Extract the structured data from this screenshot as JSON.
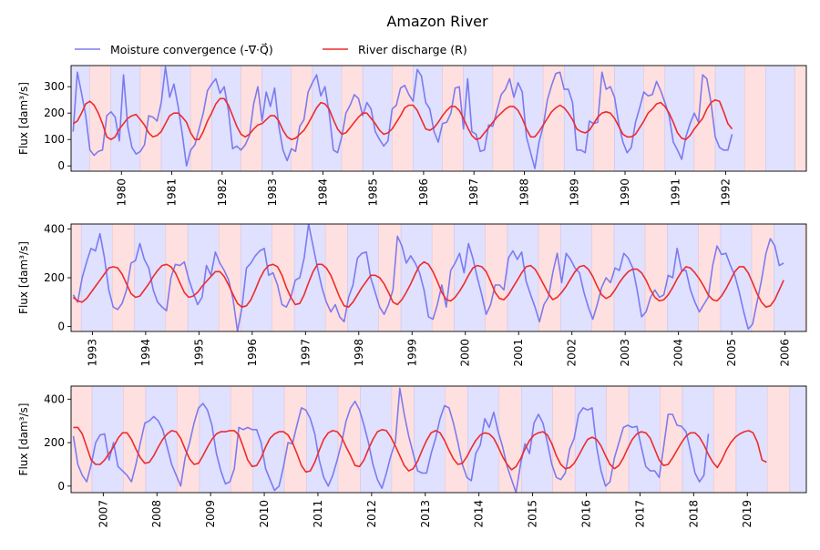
{
  "figure": {
    "title": "Amazon River",
    "legend": [
      {
        "label": "Moisture convergence (-∇·Q⃗)",
        "color": "#7b7bef"
      },
      {
        "label": "River discharge (R)",
        "color": "#ee2b2b"
      }
    ],
    "ylabel": "Flux [dam³/s]"
  },
  "chart_data": [
    {
      "type": "line",
      "title": "",
      "xlabel": "",
      "ylabel": "Flux [dam³/s]",
      "xlim": [
        1979.0,
        1993.6
      ],
      "ylim": [
        -20,
        380
      ],
      "yticks": [
        0,
        100,
        200,
        300
      ],
      "xticks": [
        "1980",
        "1981",
        "1982",
        "1983",
        "1984",
        "1985",
        "1986",
        "1987",
        "1988",
        "1989",
        "1990",
        "1991",
        "1992"
      ],
      "grid": false,
      "legend_position": "above plots, left",
      "shading": {
        "blue_start_month": 9.5,
        "blue_months": 7,
        "red_months": 5,
        "blue_color": "#e0e0ff",
        "red_color": "#ffe0e0"
      },
      "series": [
        {
          "name": "Moisture convergence",
          "color": "#7b7bef",
          "values": [
            130,
            355,
            275,
            190,
            60,
            40,
            55,
            60,
            190,
            205,
            185,
            95,
            345,
            150,
            70,
            45,
            55,
            80,
            190,
            185,
            170,
            240,
            375,
            260,
            310,
            225,
            120,
            0,
            60,
            80,
            140,
            200,
            285,
            310,
            330,
            275,
            300,
            210,
            65,
            75,
            60,
            80,
            115,
            235,
            300,
            170,
            280,
            225,
            295,
            150,
            60,
            20,
            65,
            55,
            150,
            175,
            280,
            315,
            345,
            265,
            300,
            200,
            60,
            50,
            110,
            200,
            230,
            270,
            255,
            190,
            240,
            215,
            130,
            100,
            75,
            95,
            215,
            230,
            295,
            305,
            270,
            245,
            365,
            340,
            240,
            215,
            130,
            90,
            160,
            165,
            200,
            295,
            300,
            140,
            330,
            130,
            120,
            55,
            60,
            155,
            150,
            210,
            270,
            290,
            330,
            260,
            315,
            280,
            110,
            50,
            -10,
            90,
            150,
            250,
            305,
            350,
            355,
            290,
            290,
            240,
            60,
            60,
            50,
            170,
            160,
            165,
            355,
            290,
            300,
            260,
            160,
            90,
            50,
            70,
            165,
            220,
            280,
            265,
            270,
            320,
            285,
            240,
            190,
            90,
            60,
            25,
            110,
            160,
            200,
            165,
            345,
            330,
            240,
            110,
            70,
            60,
            60,
            120
          ]
        },
        {
          "name": "River discharge",
          "color": "#ee2b2b",
          "values": [
            160,
            170,
            200,
            235,
            245,
            230,
            200,
            160,
            110,
            100,
            110,
            140,
            160,
            180,
            190,
            195,
            175,
            155,
            125,
            110,
            115,
            130,
            160,
            190,
            200,
            200,
            185,
            165,
            125,
            100,
            100,
            130,
            170,
            200,
            235,
            255,
            255,
            230,
            190,
            150,
            120,
            110,
            120,
            140,
            155,
            160,
            175,
            190,
            190,
            170,
            135,
            110,
            100,
            105,
            120,
            135,
            160,
            190,
            220,
            240,
            235,
            215,
            175,
            140,
            120,
            125,
            145,
            165,
            185,
            200,
            200,
            180,
            160,
            135,
            120,
            125,
            140,
            165,
            190,
            220,
            230,
            230,
            210,
            175,
            140,
            135,
            145,
            165,
            190,
            210,
            225,
            225,
            210,
            180,
            145,
            115,
            100,
            105,
            125,
            145,
            165,
            185,
            200,
            215,
            225,
            225,
            210,
            180,
            140,
            110,
            110,
            130,
            155,
            180,
            205,
            220,
            230,
            220,
            200,
            175,
            140,
            130,
            125,
            135,
            160,
            185,
            200,
            205,
            200,
            180,
            150,
            120,
            110,
            110,
            120,
            145,
            170,
            200,
            215,
            235,
            240,
            225,
            200,
            165,
            125,
            105,
            100,
            115,
            140,
            160,
            180,
            215,
            240,
            250,
            245,
            205,
            160,
            140
          ]
        }
      ]
    },
    {
      "type": "line",
      "title": "",
      "xlabel": "",
      "ylabel": "Flux [dam³/s]",
      "xlim": [
        1992.6,
        2006.4
      ],
      "ylim": [
        -20,
        420
      ],
      "yticks": [
        0,
        200,
        400
      ],
      "xticks": [
        "1993",
        "1994",
        "1995",
        "1996",
        "1997",
        "1998",
        "1999",
        "2000",
        "2001",
        "2002",
        "2003",
        "2004",
        "2005",
        "2006"
      ],
      "grid": false,
      "legend_position": "none",
      "shading": {
        "blue_start_month": 9.5,
        "blue_months": 7,
        "red_months": 5,
        "blue_color": "#e0e0ff",
        "red_color": "#ffe0e0"
      },
      "series": [
        {
          "name": "Moisture convergence",
          "color": "#7b7bef",
          "values": [
            130,
            100,
            200,
            265,
            320,
            310,
            380,
            285,
            150,
            80,
            70,
            95,
            150,
            260,
            270,
            340,
            275,
            240,
            150,
            100,
            80,
            65,
            200,
            255,
            250,
            265,
            195,
            140,
            90,
            120,
            250,
            210,
            305,
            260,
            230,
            190,
            110,
            -20,
            80,
            240,
            260,
            290,
            310,
            320,
            210,
            220,
            170,
            90,
            80,
            120,
            190,
            200,
            280,
            420,
            330,
            240,
            160,
            100,
            60,
            90,
            40,
            20,
            120,
            170,
            280,
            300,
            305,
            200,
            140,
            80,
            50,
            90,
            150,
            370,
            330,
            260,
            290,
            260,
            220,
            150,
            40,
            30,
            90,
            170,
            80,
            230,
            260,
            300,
            220,
            340,
            280,
            200,
            130,
            50,
            90,
            170,
            170,
            150,
            280,
            310,
            275,
            305,
            185,
            130,
            80,
            20,
            90,
            120,
            220,
            300,
            180,
            300,
            275,
            240,
            220,
            140,
            80,
            30,
            90,
            160,
            200,
            180,
            240,
            230,
            300,
            280,
            240,
            150,
            40,
            60,
            120,
            150,
            120,
            130,
            210,
            200,
            320,
            230,
            230,
            150,
            100,
            60,
            90,
            120,
            250,
            330,
            295,
            300,
            250,
            210,
            140,
            60,
            -10,
            10,
            100,
            190,
            300,
            360,
            330,
            250,
            260
          ]
        },
        {
          "name": "River discharge",
          "color": "#ee2b2b",
          "values": [
            120,
            105,
            100,
            115,
            140,
            165,
            190,
            215,
            240,
            245,
            240,
            215,
            175,
            135,
            120,
            125,
            150,
            175,
            205,
            230,
            250,
            255,
            245,
            220,
            180,
            140,
            120,
            125,
            140,
            165,
            185,
            205,
            225,
            225,
            205,
            170,
            130,
            95,
            80,
            85,
            110,
            150,
            195,
            230,
            250,
            255,
            245,
            210,
            160,
            120,
            90,
            95,
            130,
            180,
            225,
            255,
            255,
            240,
            210,
            165,
            120,
            85,
            80,
            100,
            130,
            160,
            185,
            210,
            210,
            200,
            175,
            140,
            100,
            90,
            110,
            140,
            175,
            215,
            250,
            265,
            255,
            225,
            185,
            140,
            110,
            105,
            120,
            145,
            175,
            210,
            240,
            250,
            245,
            225,
            185,
            140,
            115,
            110,
            130,
            160,
            190,
            220,
            245,
            250,
            235,
            205,
            170,
            135,
            110,
            120,
            140,
            165,
            195,
            225,
            245,
            250,
            235,
            205,
            165,
            130,
            115,
            125,
            150,
            180,
            205,
            225,
            235,
            235,
            220,
            190,
            150,
            120,
            105,
            110,
            130,
            160,
            195,
            225,
            245,
            240,
            220,
            195,
            165,
            130,
            110,
            105,
            125,
            155,
            190,
            225,
            245,
            245,
            220,
            180,
            135,
            100,
            80,
            85,
            110,
            150,
            190
          ]
        }
      ]
    },
    {
      "type": "line",
      "title": "",
      "xlabel": "",
      "ylabel": "Flux [dam³/s]",
      "xlim": [
        2006.4,
        2020.1
      ],
      "ylim": [
        -30,
        460
      ],
      "yticks": [
        0,
        200,
        400
      ],
      "xticks": [
        "2007",
        "2008",
        "2009",
        "2010",
        "2011",
        "2012",
        "2013",
        "2014",
        "2015",
        "2016",
        "2017",
        "2018",
        "2019"
      ],
      "grid": false,
      "legend_position": "none",
      "shading": {
        "blue_start_month": 9.5,
        "blue_months": 7,
        "red_months": 5,
        "blue_color": "#e0e0ff",
        "red_color": "#ffe0e0"
      },
      "series": [
        {
          "name": "Moisture convergence",
          "color": "#7b7bef",
          "values": [
            230,
            100,
            50,
            20,
            100,
            200,
            235,
            240,
            120,
            200,
            90,
            70,
            50,
            20,
            100,
            200,
            290,
            300,
            320,
            300,
            260,
            180,
            100,
            50,
            0,
            130,
            200,
            290,
            360,
            380,
            350,
            280,
            150,
            70,
            10,
            20,
            80,
            270,
            260,
            270,
            260,
            260,
            200,
            80,
            30,
            -20,
            0,
            90,
            200,
            195,
            280,
            360,
            350,
            310,
            240,
            120,
            40,
            0,
            50,
            120,
            200,
            300,
            360,
            390,
            350,
            280,
            200,
            100,
            30,
            -10,
            60,
            140,
            200,
            450,
            330,
            230,
            150,
            70,
            60,
            60,
            150,
            220,
            310,
            370,
            360,
            290,
            200,
            100,
            40,
            25,
            150,
            190,
            310,
            270,
            340,
            250,
            180,
            90,
            30,
            -30,
            100,
            195,
            150,
            290,
            330,
            290,
            200,
            100,
            40,
            30,
            60,
            170,
            220,
            330,
            360,
            350,
            360,
            180,
            70,
            0,
            20,
            130,
            200,
            270,
            280,
            270,
            275,
            180,
            90,
            70,
            70,
            40,
            180,
            330,
            330,
            280,
            275,
            250,
            160,
            60,
            20,
            50,
            240
          ]
        },
        {
          "name": "River discharge",
          "color": "#ee2b2b",
          "values": [
            270,
            270,
            240,
            180,
            120,
            100,
            100,
            120,
            150,
            180,
            220,
            245,
            245,
            215,
            170,
            130,
            105,
            110,
            140,
            180,
            215,
            240,
            255,
            250,
            220,
            170,
            125,
            100,
            105,
            140,
            180,
            215,
            240,
            250,
            250,
            255,
            255,
            235,
            180,
            120,
            90,
            95,
            130,
            180,
            220,
            240,
            250,
            250,
            235,
            200,
            150,
            95,
            65,
            70,
            110,
            165,
            215,
            245,
            255,
            250,
            225,
            180,
            140,
            95,
            90,
            120,
            170,
            215,
            250,
            260,
            255,
            225,
            185,
            140,
            95,
            70,
            80,
            115,
            165,
            210,
            245,
            255,
            245,
            210,
            165,
            125,
            100,
            105,
            135,
            175,
            210,
            235,
            245,
            240,
            220,
            180,
            135,
            100,
            75,
            90,
            125,
            170,
            210,
            235,
            245,
            250,
            235,
            195,
            140,
            100,
            80,
            85,
            105,
            140,
            180,
            215,
            225,
            215,
            185,
            140,
            100,
            80,
            95,
            130,
            175,
            215,
            240,
            250,
            245,
            220,
            170,
            120,
            95,
            100,
            130,
            165,
            200,
            230,
            245,
            245,
            225,
            190,
            145,
            110,
            85,
            120,
            165,
            200,
            225,
            240,
            250,
            255,
            245,
            200,
            120,
            110
          ]
        }
      ]
    }
  ]
}
